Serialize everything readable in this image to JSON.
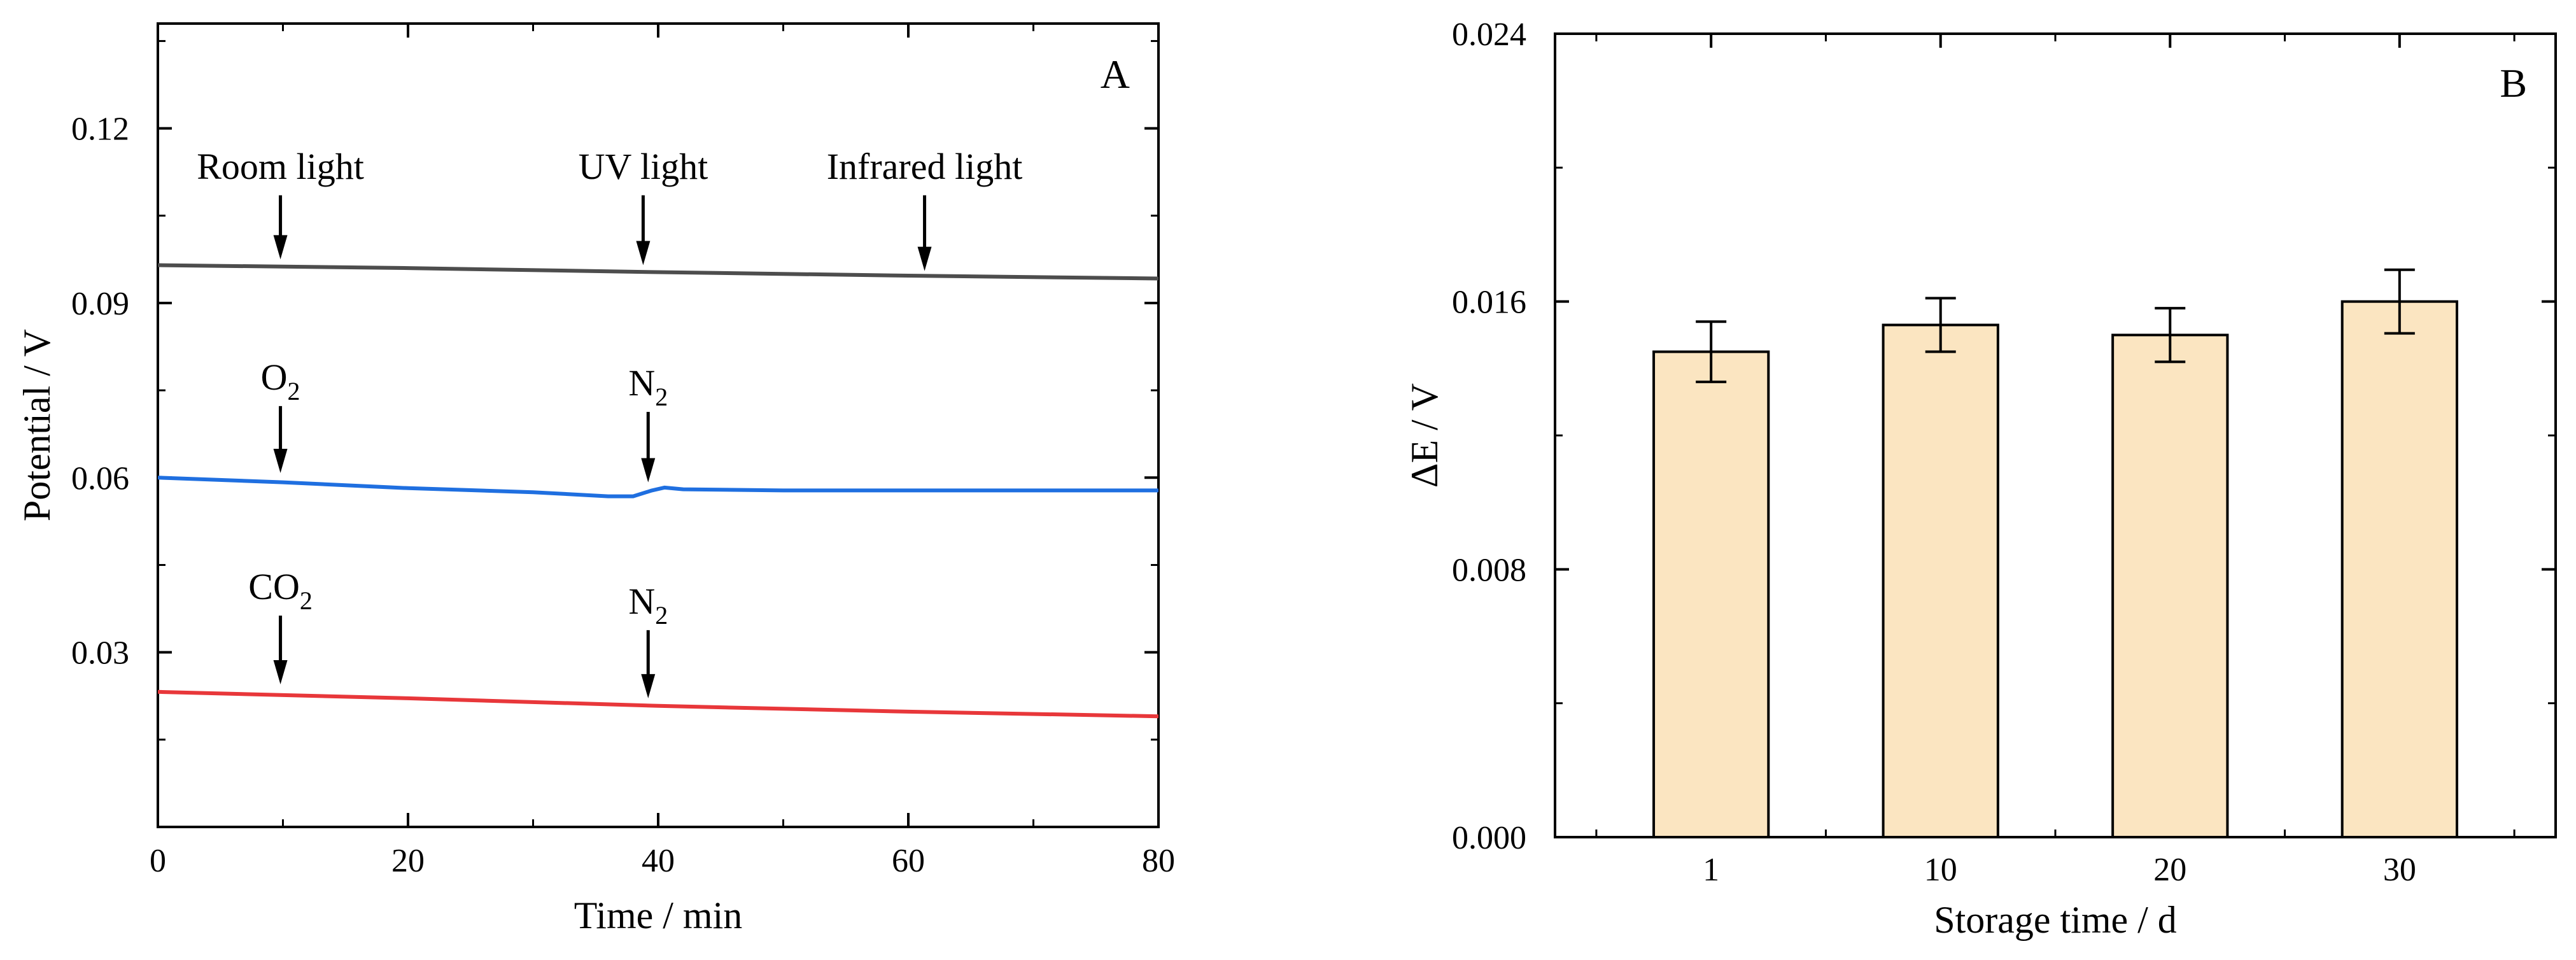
{
  "chart_data": [
    {
      "type": "line",
      "panel_label": "A",
      "xlabel": "Time / min",
      "ylabel": "Potential / V",
      "xlim": [
        0,
        80
      ],
      "ylim": [
        0,
        0.138
      ],
      "x_ticks": [
        0,
        20,
        40,
        60,
        80
      ],
      "x_tick_labels": [
        "0",
        "20",
        "40",
        "60",
        "80"
      ],
      "y_ticks": [
        0.03,
        0.06,
        0.09,
        0.12
      ],
      "y_tick_labels": [
        "0.03",
        "0.06",
        "0.09",
        "0.12"
      ],
      "series": [
        {
          "name": "light",
          "color": "#4d4d4d",
          "points": [
            [
              0,
              0.0965
            ],
            [
              20,
              0.096
            ],
            [
              40,
              0.0953
            ],
            [
              60,
              0.0947
            ],
            [
              80,
              0.0942
            ]
          ]
        },
        {
          "name": "O2/N2",
          "color": "#1f6fe0",
          "points": [
            [
              0,
              0.06
            ],
            [
              10,
              0.0592
            ],
            [
              20,
              0.0582
            ],
            [
              30,
              0.0575
            ],
            [
              36,
              0.0568
            ],
            [
              38,
              0.0568
            ],
            [
              39.5,
              0.0578
            ],
            [
              40.5,
              0.0583
            ],
            [
              42,
              0.058
            ],
            [
              50,
              0.0578
            ],
            [
              60,
              0.0578
            ],
            [
              70,
              0.0578
            ],
            [
              80,
              0.0578
            ]
          ]
        },
        {
          "name": "CO2/N2",
          "color": "#e8373a",
          "points": [
            [
              0,
              0.0232
            ],
            [
              20,
              0.0221
            ],
            [
              40,
              0.0208
            ],
            [
              60,
              0.0198
            ],
            [
              80,
              0.019
            ]
          ]
        }
      ],
      "annotations": [
        {
          "text": "Room light",
          "x": 9.8,
          "arrow_from": 0.1085,
          "arrow_to": 0.0975
        },
        {
          "text": "UV light",
          "x": 38.8,
          "arrow_from": 0.1085,
          "arrow_to": 0.0965
        },
        {
          "text": "Infrared light",
          "x": 61.3,
          "arrow_from": 0.1085,
          "arrow_to": 0.0955
        },
        {
          "text": "O",
          "sub": "2",
          "x": 9.8,
          "arrow_from": 0.0723,
          "arrow_to": 0.0608
        },
        {
          "text": "N",
          "sub": "2",
          "x": 39.2,
          "arrow_from": 0.0713,
          "arrow_to": 0.0592
        },
        {
          "text": "CO",
          "sub": "2",
          "x": 9.8,
          "arrow_from": 0.0363,
          "arrow_to": 0.0245
        },
        {
          "text": "N",
          "sub": "2",
          "x": 39.2,
          "arrow_from": 0.0338,
          "arrow_to": 0.0221
        }
      ]
    },
    {
      "type": "bar",
      "panel_label": "B",
      "xlabel": "Storage time / d",
      "ylabel": "ΔE / V",
      "categories": [
        "1",
        "10",
        "20",
        "30"
      ],
      "values": [
        0.0145,
        0.0153,
        0.015,
        0.016
      ],
      "errors": [
        0.0009,
        0.0008,
        0.0008,
        0.00095
      ],
      "ylim": [
        0,
        0.024
      ],
      "y_ticks": [
        0,
        0.008,
        0.016,
        0.024
      ],
      "y_tick_labels": [
        "0.000",
        "0.008",
        "0.016",
        "0.024"
      ],
      "bar_color": "#fbe5c1",
      "edge_color": "#000000"
    }
  ]
}
